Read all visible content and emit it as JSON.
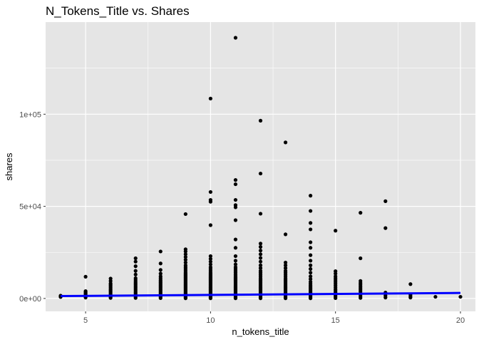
{
  "chart_data": {
    "type": "scatter",
    "title": "N_Tokens_Title  vs. Shares",
    "xlabel": "n_tokens_title",
    "ylabel": "shares",
    "xlim": [
      3.4,
      20.6
    ],
    "ylim": [
      -7000,
      150000
    ],
    "x_ticks": [
      5,
      10,
      15,
      20
    ],
    "x_tick_labels": [
      "5",
      "10",
      "15",
      "20"
    ],
    "y_ticks": [
      0,
      50000,
      100000
    ],
    "y_tick_labels": [
      "0e+00",
      "5e+04",
      "1e+05"
    ],
    "grid": true,
    "legend": "none",
    "colors": {
      "panel": "#e5e5e5",
      "grid": "#ffffff",
      "points": "#000000",
      "trend_line": "#0000ff"
    },
    "trend_line": {
      "x": [
        4,
        20
      ],
      "y": [
        1300,
        3000
      ]
    },
    "points": [
      [
        4,
        800
      ],
      [
        4,
        1000
      ],
      [
        4,
        1200
      ],
      [
        4,
        1500
      ],
      [
        5,
        500
      ],
      [
        5,
        1000
      ],
      [
        5,
        1500
      ],
      [
        5,
        2000
      ],
      [
        5,
        2500
      ],
      [
        5,
        3000
      ],
      [
        5,
        3500
      ],
      [
        5,
        4000
      ],
      [
        5,
        11800
      ],
      [
        6,
        300
      ],
      [
        6,
        800
      ],
      [
        6,
        1500
      ],
      [
        6,
        2200
      ],
      [
        6,
        3000
      ],
      [
        6,
        3800
      ],
      [
        6,
        4500
      ],
      [
        6,
        5200
      ],
      [
        6,
        6000
      ],
      [
        6,
        6800
      ],
      [
        6,
        7500
      ],
      [
        6,
        8200
      ],
      [
        6,
        9500
      ],
      [
        6,
        10800
      ],
      [
        7,
        300
      ],
      [
        7,
        1000
      ],
      [
        7,
        1800
      ],
      [
        7,
        2600
      ],
      [
        7,
        3400
      ],
      [
        7,
        4200
      ],
      [
        7,
        5000
      ],
      [
        7,
        5800
      ],
      [
        7,
        6600
      ],
      [
        7,
        7400
      ],
      [
        7,
        8200
      ],
      [
        7,
        9000
      ],
      [
        7,
        10000
      ],
      [
        7,
        11000
      ],
      [
        7,
        13000
      ],
      [
        7,
        15000
      ],
      [
        7,
        17500
      ],
      [
        7,
        20000
      ],
      [
        7,
        21800
      ],
      [
        8,
        200
      ],
      [
        8,
        900
      ],
      [
        8,
        1600
      ],
      [
        8,
        2300
      ],
      [
        8,
        3000
      ],
      [
        8,
        3700
      ],
      [
        8,
        4400
      ],
      [
        8,
        5100
      ],
      [
        8,
        5800
      ],
      [
        8,
        6500
      ],
      [
        8,
        7200
      ],
      [
        8,
        7900
      ],
      [
        8,
        8600
      ],
      [
        8,
        9300
      ],
      [
        8,
        10000
      ],
      [
        8,
        11000
      ],
      [
        8,
        12000
      ],
      [
        8,
        13500
      ],
      [
        8,
        15500
      ],
      [
        8,
        19000
      ],
      [
        8,
        25500
      ],
      [
        9,
        100
      ],
      [
        9,
        700
      ],
      [
        9,
        1300
      ],
      [
        9,
        1900
      ],
      [
        9,
        2500
      ],
      [
        9,
        3100
      ],
      [
        9,
        3700
      ],
      [
        9,
        4300
      ],
      [
        9,
        4900
      ],
      [
        9,
        5500
      ],
      [
        9,
        6100
      ],
      [
        9,
        6700
      ],
      [
        9,
        7300
      ],
      [
        9,
        7900
      ],
      [
        9,
        8500
      ],
      [
        9,
        9100
      ],
      [
        9,
        9700
      ],
      [
        9,
        10300
      ],
      [
        9,
        10900
      ],
      [
        9,
        11500
      ],
      [
        9,
        12100
      ],
      [
        9,
        12700
      ],
      [
        9,
        13300
      ],
      [
        9,
        14000
      ],
      [
        9,
        15000
      ],
      [
        9,
        16000
      ],
      [
        9,
        17000
      ],
      [
        9,
        18000
      ],
      [
        9,
        19500
      ],
      [
        9,
        21000
      ],
      [
        9,
        22500
      ],
      [
        9,
        24000
      ],
      [
        9,
        25500
      ],
      [
        9,
        26700
      ],
      [
        9,
        45800
      ],
      [
        10,
        100
      ],
      [
        10,
        700
      ],
      [
        10,
        1300
      ],
      [
        10,
        1900
      ],
      [
        10,
        2500
      ],
      [
        10,
        3100
      ],
      [
        10,
        3700
      ],
      [
        10,
        4300
      ],
      [
        10,
        4900
      ],
      [
        10,
        5500
      ],
      [
        10,
        6100
      ],
      [
        10,
        6700
      ],
      [
        10,
        7300
      ],
      [
        10,
        7900
      ],
      [
        10,
        8500
      ],
      [
        10,
        9100
      ],
      [
        10,
        9700
      ],
      [
        10,
        10300
      ],
      [
        10,
        10900
      ],
      [
        10,
        11500
      ],
      [
        10,
        12100
      ],
      [
        10,
        12700
      ],
      [
        10,
        13300
      ],
      [
        10,
        14000
      ],
      [
        10,
        15000
      ],
      [
        10,
        16000
      ],
      [
        10,
        17000
      ],
      [
        10,
        18500
      ],
      [
        10,
        20000
      ],
      [
        10,
        21500
      ],
      [
        10,
        23000
      ],
      [
        10,
        39800
      ],
      [
        10,
        52500
      ],
      [
        10,
        53500
      ],
      [
        10,
        57800
      ],
      [
        10,
        108500
      ],
      [
        11,
        100
      ],
      [
        11,
        700
      ],
      [
        11,
        1300
      ],
      [
        11,
        1900
      ],
      [
        11,
        2500
      ],
      [
        11,
        3100
      ],
      [
        11,
        3700
      ],
      [
        11,
        4300
      ],
      [
        11,
        4900
      ],
      [
        11,
        5500
      ],
      [
        11,
        6100
      ],
      [
        11,
        6700
      ],
      [
        11,
        7300
      ],
      [
        11,
        7900
      ],
      [
        11,
        8500
      ],
      [
        11,
        9100
      ],
      [
        11,
        9700
      ],
      [
        11,
        10300
      ],
      [
        11,
        10900
      ],
      [
        11,
        11500
      ],
      [
        11,
        12200
      ],
      [
        11,
        13000
      ],
      [
        11,
        14000
      ],
      [
        11,
        15000
      ],
      [
        11,
        16000
      ],
      [
        11,
        17000
      ],
      [
        11,
        18500
      ],
      [
        11,
        20500
      ],
      [
        11,
        23000
      ],
      [
        11,
        27500
      ],
      [
        11,
        32000
      ],
      [
        11,
        42500
      ],
      [
        11,
        49500
      ],
      [
        11,
        50700
      ],
      [
        11,
        53500
      ],
      [
        11,
        62000
      ],
      [
        11,
        64300
      ],
      [
        11,
        141500
      ],
      [
        12,
        100
      ],
      [
        12,
        700
      ],
      [
        12,
        1300
      ],
      [
        12,
        1900
      ],
      [
        12,
        2500
      ],
      [
        12,
        3100
      ],
      [
        12,
        3700
      ],
      [
        12,
        4300
      ],
      [
        12,
        4900
      ],
      [
        12,
        5500
      ],
      [
        12,
        6100
      ],
      [
        12,
        6700
      ],
      [
        12,
        7300
      ],
      [
        12,
        7900
      ],
      [
        12,
        8500
      ],
      [
        12,
        9100
      ],
      [
        12,
        9700
      ],
      [
        12,
        10300
      ],
      [
        12,
        11000
      ],
      [
        12,
        12000
      ],
      [
        12,
        13000
      ],
      [
        12,
        14000
      ],
      [
        12,
        15000
      ],
      [
        12,
        16500
      ],
      [
        12,
        18000
      ],
      [
        12,
        20000
      ],
      [
        12,
        22000
      ],
      [
        12,
        24000
      ],
      [
        12,
        26000
      ],
      [
        12,
        28000
      ],
      [
        12,
        29800
      ],
      [
        12,
        46000
      ],
      [
        12,
        67800
      ],
      [
        12,
        96500
      ],
      [
        13,
        100
      ],
      [
        13,
        700
      ],
      [
        13,
        1300
      ],
      [
        13,
        1900
      ],
      [
        13,
        2500
      ],
      [
        13,
        3100
      ],
      [
        13,
        3700
      ],
      [
        13,
        4300
      ],
      [
        13,
        4900
      ],
      [
        13,
        5500
      ],
      [
        13,
        6100
      ],
      [
        13,
        6700
      ],
      [
        13,
        7300
      ],
      [
        13,
        7900
      ],
      [
        13,
        8500
      ],
      [
        13,
        9100
      ],
      [
        13,
        9700
      ],
      [
        13,
        10300
      ],
      [
        13,
        11000
      ],
      [
        13,
        12000
      ],
      [
        13,
        13000
      ],
      [
        13,
        14000
      ],
      [
        13,
        15000
      ],
      [
        13,
        16500
      ],
      [
        13,
        18000
      ],
      [
        13,
        19500
      ],
      [
        13,
        34800
      ],
      [
        13,
        84700
      ],
      [
        14,
        100
      ],
      [
        14,
        800
      ],
      [
        14,
        1500
      ],
      [
        14,
        2200
      ],
      [
        14,
        2900
      ],
      [
        14,
        3600
      ],
      [
        14,
        4300
      ],
      [
        14,
        5000
      ],
      [
        14,
        5700
      ],
      [
        14,
        6400
      ],
      [
        14,
        7100
      ],
      [
        14,
        8000
      ],
      [
        14,
        9000
      ],
      [
        14,
        10500
      ],
      [
        14,
        12000
      ],
      [
        14,
        14000
      ],
      [
        14,
        16000
      ],
      [
        14,
        18000
      ],
      [
        14,
        20500
      ],
      [
        14,
        23500
      ],
      [
        14,
        27500
      ],
      [
        14,
        30500
      ],
      [
        14,
        37500
      ],
      [
        14,
        41000
      ],
      [
        14,
        47500
      ],
      [
        14,
        55800
      ],
      [
        15,
        200
      ],
      [
        15,
        1000
      ],
      [
        15,
        1800
      ],
      [
        15,
        2600
      ],
      [
        15,
        3400
      ],
      [
        15,
        4200
      ],
      [
        15,
        5000
      ],
      [
        15,
        6000
      ],
      [
        15,
        7000
      ],
      [
        15,
        8000
      ],
      [
        15,
        9000
      ],
      [
        15,
        10000
      ],
      [
        15,
        11000
      ],
      [
        15,
        12000
      ],
      [
        15,
        13500
      ],
      [
        15,
        14800
      ],
      [
        15,
        36800
      ],
      [
        16,
        300
      ],
      [
        16,
        1200
      ],
      [
        16,
        2100
      ],
      [
        16,
        3000
      ],
      [
        16,
        3900
      ],
      [
        16,
        4800
      ],
      [
        16,
        5700
      ],
      [
        16,
        6600
      ],
      [
        16,
        7500
      ],
      [
        16,
        8400
      ],
      [
        16,
        9500
      ],
      [
        16,
        21800
      ],
      [
        16,
        46500
      ],
      [
        17,
        500
      ],
      [
        17,
        1500
      ],
      [
        17,
        2500
      ],
      [
        17,
        3200
      ],
      [
        17,
        38200
      ],
      [
        17,
        52800
      ],
      [
        18,
        500
      ],
      [
        18,
        1200
      ],
      [
        18,
        2000
      ],
      [
        18,
        7800
      ],
      [
        19,
        900
      ],
      [
        20,
        900
      ]
    ]
  }
}
